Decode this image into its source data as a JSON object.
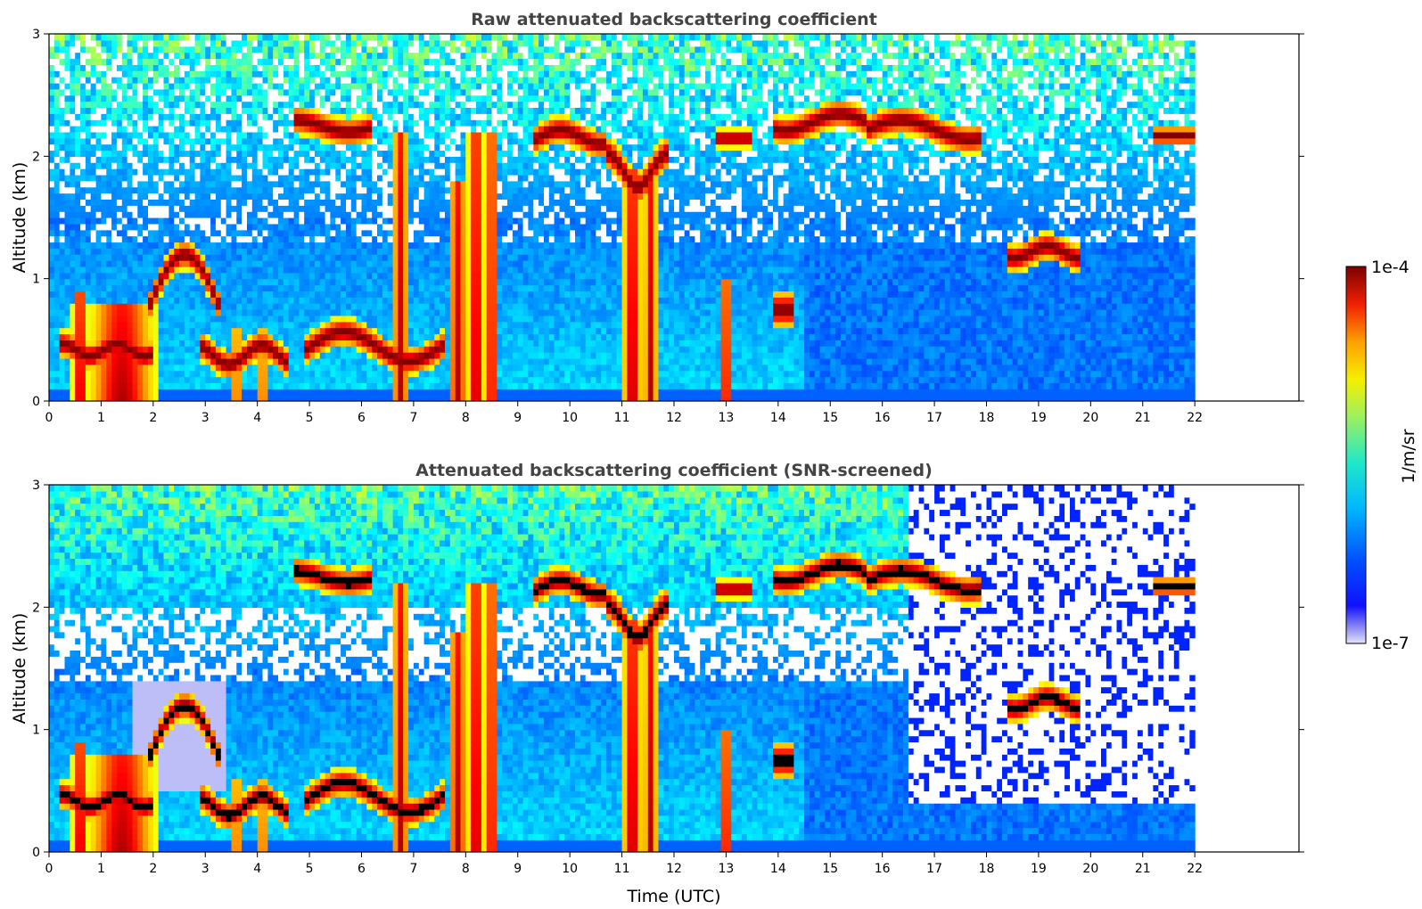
{
  "figure": {
    "colorbar": {
      "label": "1/m/sr",
      "max_label": "1e-4",
      "min_label": "1e-7",
      "colormap": "jet",
      "scale": "log",
      "vmin": 1e-07,
      "vmax": 0.0001
    }
  },
  "chart_data": [
    {
      "type": "heatmap",
      "title": "Raw attenuated backscattering coefficient",
      "xlabel": "",
      "ylabel": "Altitude (km)",
      "xlim": [
        0,
        24
      ],
      "ylim": [
        0,
        3
      ],
      "x_ticks": [
        "0",
        "1",
        "2",
        "3",
        "4",
        "5",
        "6",
        "7",
        "8",
        "9",
        "10",
        "11",
        "12",
        "13",
        "14",
        "15",
        "16",
        "17",
        "18",
        "19",
        "20",
        "21",
        "22"
      ],
      "y_ticks": [
        "0",
        "1",
        "2",
        "3"
      ],
      "data_time_range": [
        0,
        22
      ],
      "grid": false,
      "features": {
        "elevated_cloud_layers": [
          {
            "t": [
              4.7,
              6.1
            ],
            "alt": [
              2.2,
              2.35
            ]
          },
          {
            "t": [
              9.3,
              11.9
            ],
            "alt": [
              1.7,
              2.3
            ]
          },
          {
            "t": [
              12.8,
              13.5
            ],
            "alt": [
              2.1,
              2.2
            ]
          },
          {
            "t": [
              14.0,
              17.9
            ],
            "alt": [
              2.1,
              2.4
            ]
          },
          {
            "t": [
              18.4,
              19.7
            ],
            "alt": [
              1.15,
              1.35
            ]
          },
          {
            "t": [
              21.2,
              22.0
            ],
            "alt": [
              2.15,
              2.2
            ]
          }
        ],
        "low_cloud_layers": [
          {
            "t": [
              0.2,
              4.6
            ],
            "alt": [
              0.3,
              1.3
            ]
          },
          {
            "t": [
              5.0,
              7.5
            ],
            "alt": [
              0.3,
              0.7
            ]
          }
        ],
        "strong_precipitation_columns": [
          {
            "t": [
              0.3,
              2.0
            ],
            "alt": [
              0.0,
              0.9
            ]
          },
          {
            "t": [
              6.6,
              7.0
            ],
            "alt": [
              0.0,
              2.2
            ]
          },
          {
            "t": [
              7.7,
              8.6
            ],
            "alt": [
              0.0,
              2.2
            ]
          },
          {
            "t": [
              11.0,
              11.7
            ],
            "alt": [
              0.0,
              2.0
            ]
          },
          {
            "t": [
              12.9,
              13.1
            ],
            "alt": [
              0.0,
              1.0
            ]
          }
        ]
      }
    },
    {
      "type": "heatmap",
      "title": "Attenuated backscattering coefficient (SNR-screened)",
      "xlabel": "Time (UTC)",
      "ylabel": "Altitude (km)",
      "xlim": [
        0,
        24
      ],
      "ylim": [
        0,
        3
      ],
      "x_ticks": [
        "0",
        "1",
        "2",
        "3",
        "4",
        "5",
        "6",
        "7",
        "8",
        "9",
        "10",
        "11",
        "12",
        "13",
        "14",
        "15",
        "16",
        "17",
        "18",
        "19",
        "20",
        "21",
        "22"
      ],
      "y_ticks": [
        "0",
        "1",
        "2",
        "3"
      ],
      "data_time_range": [
        0,
        22
      ],
      "grid": false,
      "features": {
        "screened_region": {
          "t": [
            16.5,
            22.0
          ],
          "alt": [
            0.38,
            3.0
          ]
        },
        "saturated_cores_rendered_black": true
      }
    }
  ]
}
